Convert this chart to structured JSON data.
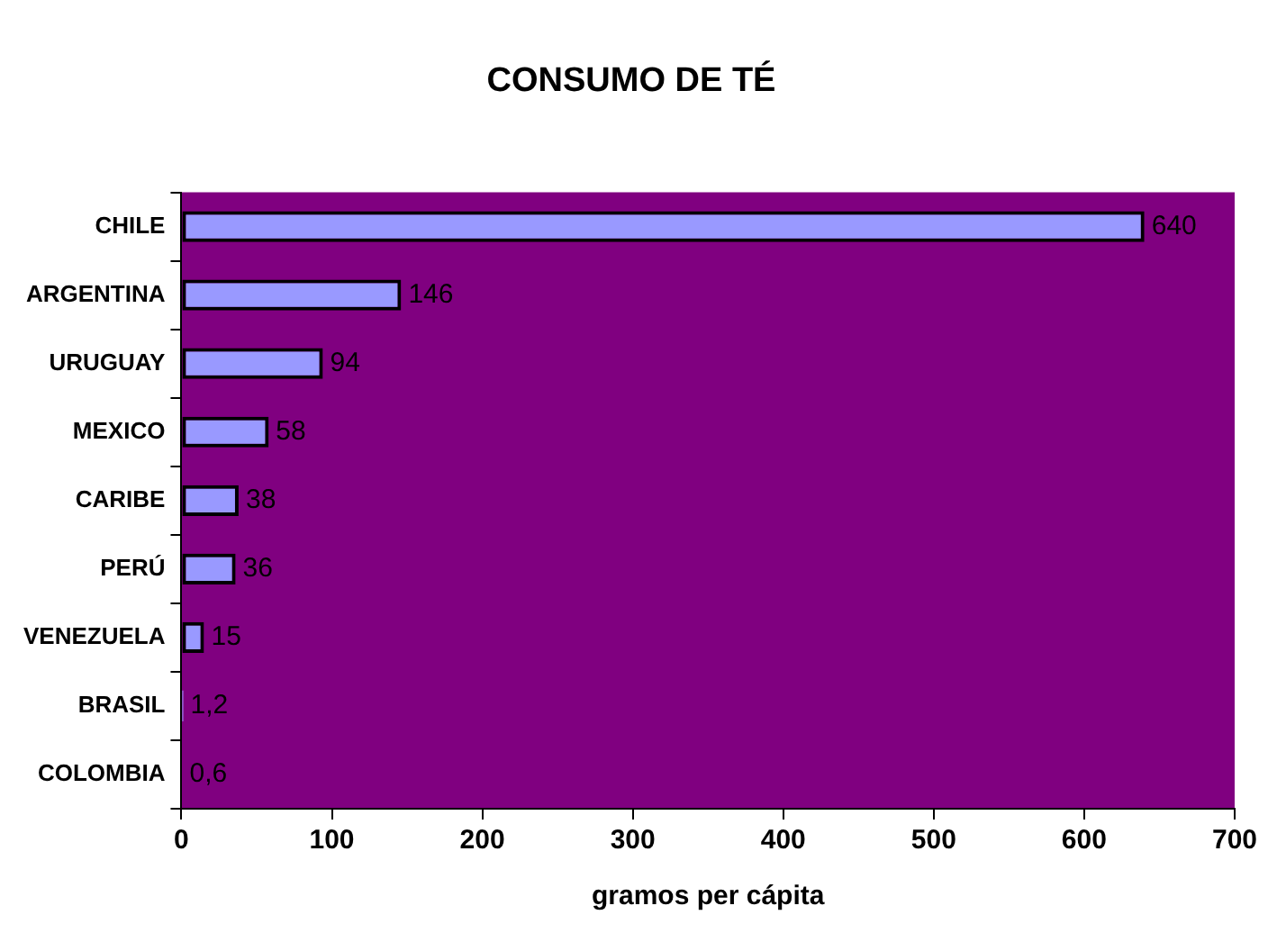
{
  "chart_data": {
    "type": "bar",
    "orientation": "horizontal",
    "title": "CONSUMO DE TÉ",
    "xlabel": "gramos per cápita",
    "categories": [
      "CHILE",
      "ARGENTINA",
      "URUGUAY",
      "MEXICO",
      "CARIBE",
      "PERÚ",
      "VENEZUELA",
      "BRASIL",
      "COLOMBIA"
    ],
    "values": [
      640,
      146,
      94,
      58,
      38,
      36,
      15,
      1.2,
      0.6
    ],
    "value_labels": [
      "640",
      "146",
      "94",
      "58",
      "38",
      "36",
      "15",
      "1,2",
      "0,6"
    ],
    "color": "#9999ff",
    "xlim": [
      0,
      700
    ],
    "xticks": [
      0,
      100,
      200,
      300,
      400,
      500,
      600,
      700
    ],
    "grid": false,
    "legend": false
  }
}
